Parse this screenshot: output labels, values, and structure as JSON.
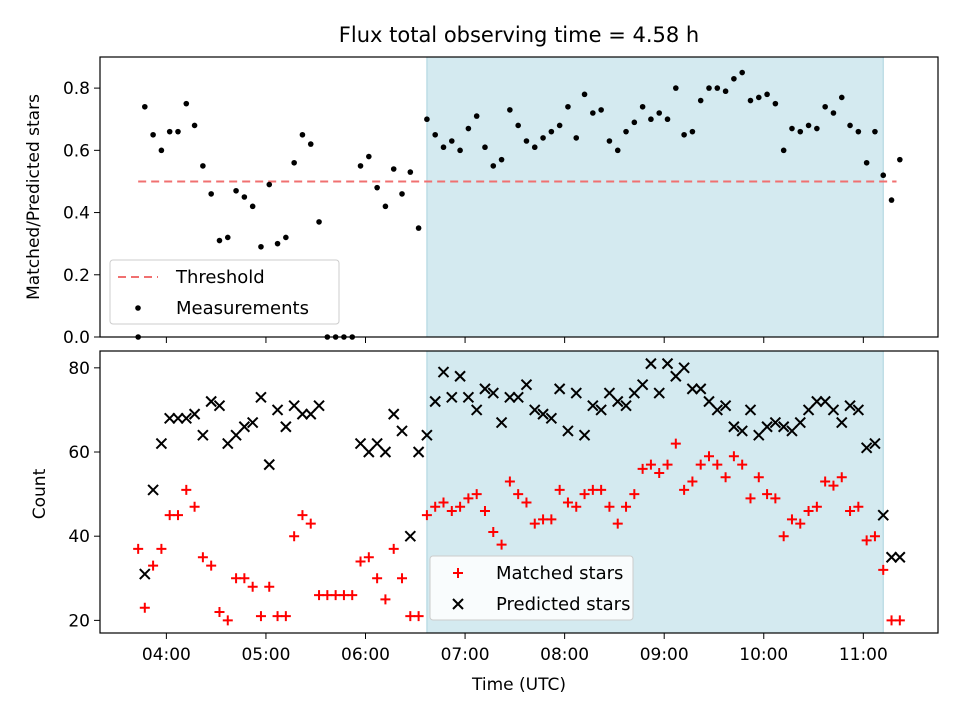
{
  "chart_data": {
    "type": "scatter",
    "title": "Flux total observing time = 4.58 h",
    "xlabel": "Time (UTC)",
    "x_ticks": [
      "04:00",
      "05:00",
      "06:00",
      "07:00",
      "08:00",
      "09:00",
      "10:00",
      "11:00"
    ],
    "xlim": [
      "03:20",
      "11:45"
    ],
    "shaded_interval": [
      "06:37",
      "11:12"
    ],
    "shade_color": "#d4eaf0",
    "panels": [
      {
        "ylabel": "Matched/Predicted stars",
        "ylim": [
          0,
          0.9
        ],
        "y_ticks": [
          "0.0",
          "0.2",
          "0.4",
          "0.6",
          "0.8"
        ],
        "legend_position": "lower-left",
        "series": [
          {
            "name": "Threshold",
            "kind": "dashed-line",
            "color": "#f07070",
            "x": [
              "03:43",
              "11:20"
            ],
            "y": [
              0.5,
              0.5
            ]
          },
          {
            "name": "Measurements",
            "kind": "dot",
            "color": "#000000",
            "x": [
              "03:43",
              "03:47",
              "03:52",
              "03:57",
              "04:02",
              "04:07",
              "04:12",
              "04:17",
              "04:22",
              "04:27",
              "04:32",
              "04:37",
              "04:42",
              "04:47",
              "04:52",
              "04:57",
              "05:02",
              "05:07",
              "05:12",
              "05:17",
              "05:22",
              "05:27",
              "05:32",
              "05:37",
              "05:42",
              "05:47",
              "05:52",
              "05:57",
              "06:02",
              "06:07",
              "06:12",
              "06:17",
              "06:22",
              "06:27",
              "06:32",
              "06:37",
              "06:42",
              "06:47",
              "06:52",
              "06:57",
              "07:02",
              "07:07",
              "07:12",
              "07:17",
              "07:22",
              "07:27",
              "07:32",
              "07:37",
              "07:42",
              "07:47",
              "07:52",
              "07:57",
              "08:02",
              "08:07",
              "08:12",
              "08:17",
              "08:22",
              "08:27",
              "08:32",
              "08:37",
              "08:42",
              "08:47",
              "08:52",
              "08:57",
              "09:02",
              "09:07",
              "09:12",
              "09:17",
              "09:22",
              "09:27",
              "09:32",
              "09:37",
              "09:42",
              "09:47",
              "09:52",
              "09:57",
              "10:02",
              "10:07",
              "10:12",
              "10:17",
              "10:22",
              "10:27",
              "10:32",
              "10:37",
              "10:42",
              "10:47",
              "10:52",
              "10:57",
              "11:02",
              "11:07",
              "11:12",
              "11:17",
              "11:22"
            ],
            "y": [
              0.0,
              0.74,
              0.65,
              0.6,
              0.66,
              0.66,
              0.75,
              0.68,
              0.55,
              0.46,
              0.31,
              0.32,
              0.47,
              0.45,
              0.42,
              0.29,
              0.49,
              0.3,
              0.32,
              0.56,
              0.65,
              0.62,
              0.37,
              0.0,
              0.0,
              0.0,
              0.0,
              0.55,
              0.58,
              0.48,
              0.42,
              0.54,
              0.46,
              0.53,
              0.35,
              0.7,
              0.65,
              0.61,
              0.63,
              0.6,
              0.67,
              0.71,
              0.61,
              0.55,
              0.57,
              0.73,
              0.68,
              0.63,
              0.61,
              0.64,
              0.66,
              0.68,
              0.74,
              0.64,
              0.78,
              0.72,
              0.73,
              0.63,
              0.6,
              0.66,
              0.69,
              0.74,
              0.7,
              0.72,
              0.7,
              0.8,
              0.65,
              0.66,
              0.76,
              0.8,
              0.8,
              0.79,
              0.83,
              0.85,
              0.76,
              0.77,
              0.78,
              0.75,
              0.6,
              0.67,
              0.66,
              0.68,
              0.67,
              0.74,
              0.72,
              0.77,
              0.68,
              0.66,
              0.56,
              0.66,
              0.52,
              0.44,
              0.57
            ]
          }
        ]
      },
      {
        "ylabel": "Count",
        "ylim": [
          17,
          84
        ],
        "y_ticks": [
          "20",
          "40",
          "60",
          "80"
        ],
        "legend_position": "lower-center",
        "series": [
          {
            "name": "Matched stars",
            "kind": "plus",
            "color": "#ff0000",
            "x": [
              "03:43",
              "03:47",
              "03:52",
              "03:57",
              "04:02",
              "04:07",
              "04:12",
              "04:17",
              "04:22",
              "04:27",
              "04:32",
              "04:37",
              "04:42",
              "04:47",
              "04:52",
              "04:57",
              "05:02",
              "05:07",
              "05:12",
              "05:17",
              "05:22",
              "05:27",
              "05:32",
              "05:37",
              "05:42",
              "05:47",
              "05:52",
              "05:57",
              "06:02",
              "06:07",
              "06:12",
              "06:17",
              "06:22",
              "06:27",
              "06:32",
              "06:37",
              "06:42",
              "06:47",
              "06:52",
              "06:57",
              "07:02",
              "07:07",
              "07:12",
              "07:17",
              "07:22",
              "07:27",
              "07:32",
              "07:37",
              "07:42",
              "07:47",
              "07:52",
              "07:57",
              "08:02",
              "08:07",
              "08:12",
              "08:17",
              "08:22",
              "08:27",
              "08:32",
              "08:37",
              "08:42",
              "08:47",
              "08:52",
              "08:57",
              "09:02",
              "09:07",
              "09:12",
              "09:17",
              "09:22",
              "09:27",
              "09:32",
              "09:37",
              "09:42",
              "09:47",
              "09:52",
              "09:57",
              "10:02",
              "10:07",
              "10:12",
              "10:17",
              "10:22",
              "10:27",
              "10:32",
              "10:37",
              "10:42",
              "10:47",
              "10:52",
              "10:57",
              "11:02",
              "11:07",
              "11:12",
              "11:17",
              "11:22"
            ],
            "y": [
              37,
              23,
              33,
              37,
              45,
              45,
              51,
              47,
              35,
              33,
              22,
              20,
              30,
              30,
              28,
              21,
              28,
              21,
              21,
              40,
              45,
              43,
              26,
              26,
              26,
              26,
              26,
              34,
              35,
              30,
              25,
              37,
              30,
              21,
              21,
              45,
              47,
              48,
              46,
              47,
              49,
              50,
              46,
              41,
              38,
              53,
              50,
              48,
              43,
              44,
              44,
              51,
              48,
              47,
              50,
              51,
              51,
              47,
              43,
              47,
              50,
              56,
              57,
              55,
              57,
              62,
              51,
              53,
              57,
              59,
              57,
              54,
              59,
              57,
              49,
              54,
              50,
              49,
              40,
              44,
              43,
              46,
              47,
              53,
              52,
              54,
              46,
              47,
              39,
              40,
              32,
              20,
              20
            ]
          },
          {
            "name": "Predicted stars",
            "kind": "x",
            "color": "#000000",
            "x": [
              "03:47",
              "03:52",
              "03:57",
              "04:02",
              "04:07",
              "04:12",
              "04:17",
              "04:22",
              "04:27",
              "04:32",
              "04:37",
              "04:42",
              "04:47",
              "04:52",
              "04:57",
              "05:02",
              "05:07",
              "05:12",
              "05:17",
              "05:22",
              "05:27",
              "05:32",
              "05:57",
              "06:02",
              "06:07",
              "06:12",
              "06:17",
              "06:22",
              "06:27",
              "06:32",
              "06:37",
              "06:42",
              "06:47",
              "06:52",
              "06:57",
              "07:02",
              "07:07",
              "07:12",
              "07:17",
              "07:22",
              "07:27",
              "07:32",
              "07:37",
              "07:42",
              "07:47",
              "07:52",
              "07:57",
              "08:02",
              "08:07",
              "08:12",
              "08:17",
              "08:22",
              "08:27",
              "08:32",
              "08:37",
              "08:42",
              "08:47",
              "08:52",
              "08:57",
              "09:02",
              "09:07",
              "09:12",
              "09:17",
              "09:22",
              "09:27",
              "09:32",
              "09:37",
              "09:42",
              "09:47",
              "09:52",
              "09:57",
              "10:02",
              "10:07",
              "10:12",
              "10:17",
              "10:22",
              "10:27",
              "10:32",
              "10:37",
              "10:42",
              "10:47",
              "10:52",
              "10:57",
              "11:02",
              "11:07",
              "11:12",
              "11:17",
              "11:22"
            ],
            "y": [
              31,
              51,
              62,
              68,
              68,
              68,
              69,
              64,
              72,
              71,
              62,
              64,
              66,
              67,
              73,
              57,
              70,
              66,
              71,
              69,
              69,
              71,
              62,
              60,
              62,
              60,
              69,
              65,
              40,
              60,
              64,
              72,
              79,
              73,
              78,
              73,
              70,
              75,
              74,
              67,
              73,
              73,
              76,
              70,
              69,
              68,
              75,
              65,
              74,
              64,
              71,
              70,
              74,
              72,
              71,
              74,
              76,
              81,
              74,
              81,
              78,
              80,
              75,
              75,
              72,
              70,
              71,
              66,
              65,
              70,
              64,
              66,
              67,
              66,
              65,
              67,
              70,
              72,
              72,
              70,
              67,
              71,
              70,
              61,
              62,
              45,
              35,
              35
            ]
          }
        ]
      }
    ]
  }
}
